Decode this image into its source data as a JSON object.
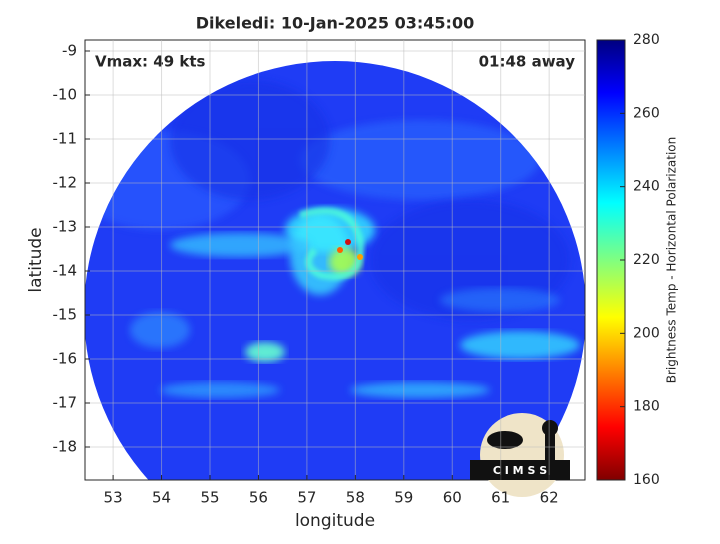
{
  "chart_data": {
    "type": "image",
    "title": "Dikeledi: 10-Jan-2025 03:45:00",
    "annotations": [
      "Vmax: 49 kts",
      "01:48 away"
    ],
    "xlabel": "longitude",
    "ylabel": "latitude",
    "xlim": [
      52.42,
      62.74
    ],
    "ylim": [
      -18.75,
      -8.75
    ],
    "xticks": [
      53,
      54,
      55,
      56,
      57,
      58,
      59,
      60,
      61,
      62
    ],
    "yticks": [
      -18,
      -17,
      -16,
      -15,
      -14,
      -13,
      -12,
      -11,
      -10,
      -9
    ],
    "grid": true,
    "colorbar": {
      "label": "Brightness Temp - Horizontal Polarization",
      "lim": [
        160,
        280
      ],
      "ticks": [
        160,
        180,
        200,
        220,
        240,
        260,
        280
      ]
    },
    "logo": "C I M S S"
  }
}
